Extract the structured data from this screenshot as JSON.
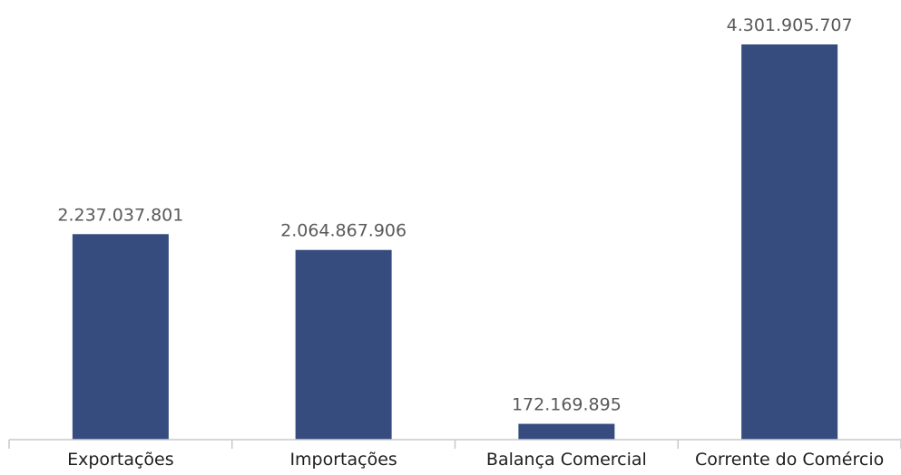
{
  "chart_data": {
    "type": "bar",
    "title": "",
    "xlabel": "",
    "ylabel": "",
    "categories": [
      "Exportações",
      "Importações",
      "Balança Comercial",
      "Corrente do Comércio"
    ],
    "values": [
      2237037801,
      2064867906,
      172169895,
      4301905707
    ],
    "data_labels": [
      "2.237.037.801",
      "2.064.867.906",
      "172.169.895",
      "4.301.905.707"
    ],
    "ylim": [
      0,
      4301905707
    ],
    "grid": false,
    "legend": "none",
    "colors": {
      "bar": "#364c7e",
      "axis": "#c8c8c8",
      "label_text": "#595959",
      "tick_text": "#1f1f1f"
    }
  }
}
